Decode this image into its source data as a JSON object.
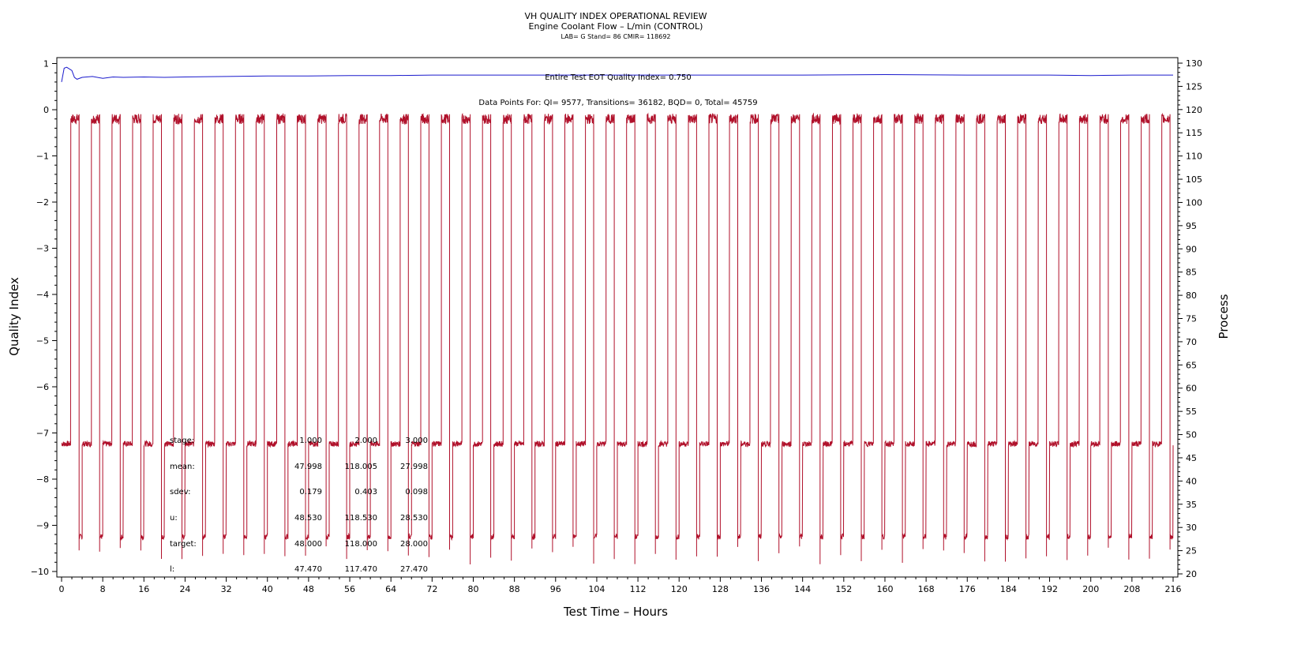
{
  "chart_data": {
    "type": "line",
    "title": "VH QUALITY INDEX OPERATIONAL REVIEW",
    "subtitle": "Engine Coolant Flow – L/min (CONTROL)",
    "subsubtitle": "LAB= G Stand= 86 CMIR= 118692",
    "xlabel": "Test Time – Hours",
    "ylabel": "Quality Index",
    "y2label": "Process",
    "xlim": [
      0,
      216
    ],
    "ylim": [
      -10,
      1
    ],
    "y2lim": [
      20,
      130
    ],
    "xticks": [
      0,
      8,
      16,
      24,
      32,
      40,
      48,
      56,
      64,
      72,
      80,
      88,
      96,
      104,
      112,
      120,
      128,
      136,
      144,
      152,
      160,
      168,
      176,
      184,
      192,
      200,
      208,
      216
    ],
    "yticks": [
      1,
      0,
      -1,
      -2,
      -3,
      -4,
      -5,
      -6,
      -7,
      -8,
      -9,
      -10
    ],
    "y2ticks": [
      130,
      125,
      120,
      115,
      110,
      105,
      100,
      95,
      90,
      85,
      80,
      75,
      70,
      65,
      60,
      55,
      50,
      45,
      40,
      35,
      30,
      25,
      20
    ],
    "annotation_qi": "Entire Test EOT Quality Index=   0.750",
    "annotation_points": "Data Points For: QI=  9577, Transitions= 36182, BQD=     0, Total= 45759",
    "series": [
      {
        "name": "Quality Index",
        "axis": "left",
        "color": "#1a1acc",
        "x": [
          0,
          0.5,
          1,
          2,
          2.5,
          3,
          4,
          6,
          8,
          10,
          12,
          16,
          20,
          24,
          32,
          40,
          48,
          56,
          64,
          72,
          80,
          96,
          112,
          128,
          144,
          160,
          176,
          192,
          200,
          208,
          216
        ],
        "values": [
          0.6,
          0.9,
          0.92,
          0.85,
          0.7,
          0.66,
          0.7,
          0.72,
          0.68,
          0.71,
          0.7,
          0.71,
          0.7,
          0.71,
          0.72,
          0.73,
          0.73,
          0.74,
          0.74,
          0.75,
          0.75,
          0.75,
          0.75,
          0.75,
          0.75,
          0.76,
          0.75,
          0.75,
          0.74,
          0.75,
          0.75
        ]
      },
      {
        "name": "Process",
        "axis": "right",
        "color": "#b0102a",
        "cycle_period_h": 4,
        "stages": [
          {
            "stage": 1,
            "level": 48,
            "hours": 1.8
          },
          {
            "stage": 2,
            "level": 118,
            "hours": 1.6
          },
          {
            "stage": 3,
            "level": 28,
            "hours": 0.6
          }
        ]
      }
    ],
    "stats": {
      "labels": [
        "stage:",
        "mean:",
        "sdev:",
        "u:",
        "target:",
        "l:"
      ],
      "columns": [
        [
          "1.000",
          "47.998",
          "0.179",
          "48.530",
          "48.000",
          "47.470"
        ],
        [
          "2.000",
          "118.005",
          "0.403",
          "118.530",
          "118.000",
          "117.470"
        ],
        [
          "3.000",
          "27.998",
          "0.098",
          "28.530",
          "28.000",
          "27.470"
        ]
      ]
    }
  }
}
